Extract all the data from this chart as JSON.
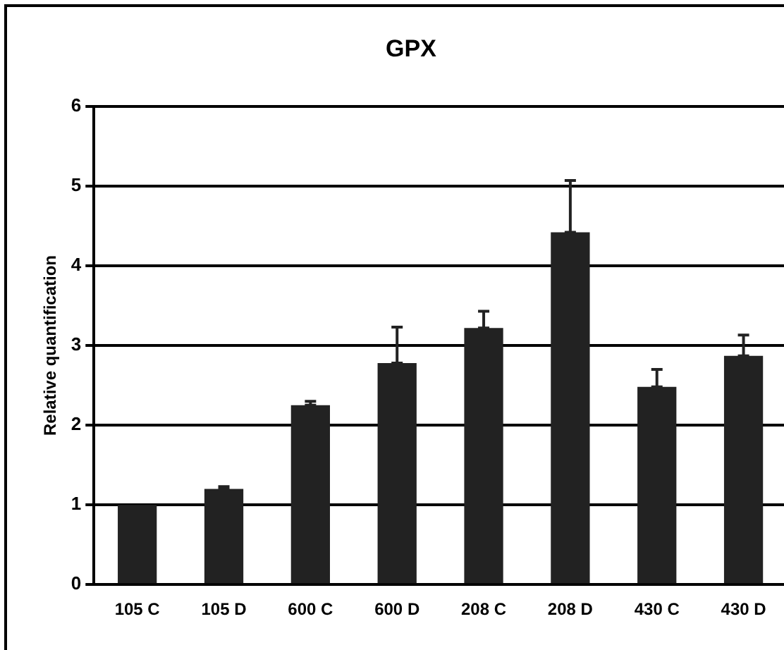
{
  "chart_data": {
    "type": "bar",
    "title": "GPX",
    "ylabel": "Relative quantification",
    "categories": [
      "105 C",
      "105 D",
      "600 C",
      "600 D",
      "208 C",
      "208 D",
      "430 C",
      "430 D"
    ],
    "values": [
      1.0,
      1.2,
      2.25,
      2.78,
      3.22,
      4.42,
      2.48,
      2.87
    ],
    "errors": [
      null,
      [
        1.2,
        1.23
      ],
      [
        2.25,
        2.3
      ],
      [
        2.78,
        3.23
      ],
      [
        3.22,
        3.43
      ],
      [
        4.42,
        5.07
      ],
      [
        2.48,
        2.7
      ],
      [
        2.87,
        3.13
      ]
    ],
    "color": "#222222",
    "ylim": [
      0,
      6
    ],
    "yticks": [
      0,
      1,
      2,
      3,
      4,
      5,
      6
    ],
    "grid": "y"
  }
}
